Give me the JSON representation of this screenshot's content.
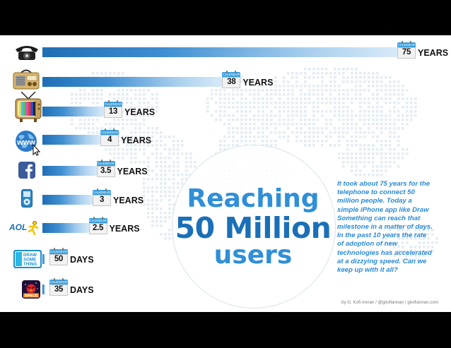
{
  "colors": {
    "accent": "#2f8fd8",
    "headline_dark": "#1a6fb8",
    "bar_dark": "#1f6eb5",
    "bar_light": "#d8eaf8",
    "calendar": "#39a0e0"
  },
  "headline": {
    "line1": "Reaching",
    "line2": "50 Million",
    "line3": "users"
  },
  "blurb": "It took about 75 years for the telephone to connect 50 million people. Today a simple iPhone app like Draw Something can reach that milestone in a matter of days. In the past 10 years the rate of adoption of new technologies has accelerated at a dizzying speed. Can we keep up with it all?",
  "credit": "by G. Kofi Annan / @gkofiannan / gkofiannan.com",
  "calendar_label": "CALENDAR",
  "icon_labels": {
    "aol": "AOL",
    "draw_something": "DRAW SOME THING",
    "space": "SPACE",
    "www": "www"
  },
  "chart_data": {
    "type": "bar",
    "orientation": "horizontal",
    "categories": [
      "Telephone",
      "Radio",
      "Television",
      "Internet",
      "Facebook",
      "iPod",
      "AOL",
      "Draw Something",
      "Angry Birds Space"
    ],
    "icons": [
      "telephone-icon",
      "radio-icon",
      "television-icon",
      "internet-icon",
      "facebook-icon",
      "ipod-icon",
      "aol-icon",
      "draw-something-icon",
      "angry-birds-space-icon"
    ],
    "values": [
      75,
      38,
      13,
      4,
      3.5,
      3,
      2.5,
      50,
      35
    ],
    "value_labels": [
      "75",
      "38",
      "13",
      "4",
      "3.5",
      "3",
      "2.5",
      "50",
      "35"
    ],
    "units": [
      "YEARS",
      "YEARS",
      "YEARS",
      "YEARS",
      "YEARS",
      "YEARS",
      "YEARS",
      "DAYS",
      "DAYS"
    ],
    "values_in_years": [
      75,
      38,
      13,
      4,
      3.5,
      3,
      2.5,
      0.137,
      0.096
    ],
    "xlim": [
      0,
      75
    ],
    "scale": "nonlinear"
  }
}
